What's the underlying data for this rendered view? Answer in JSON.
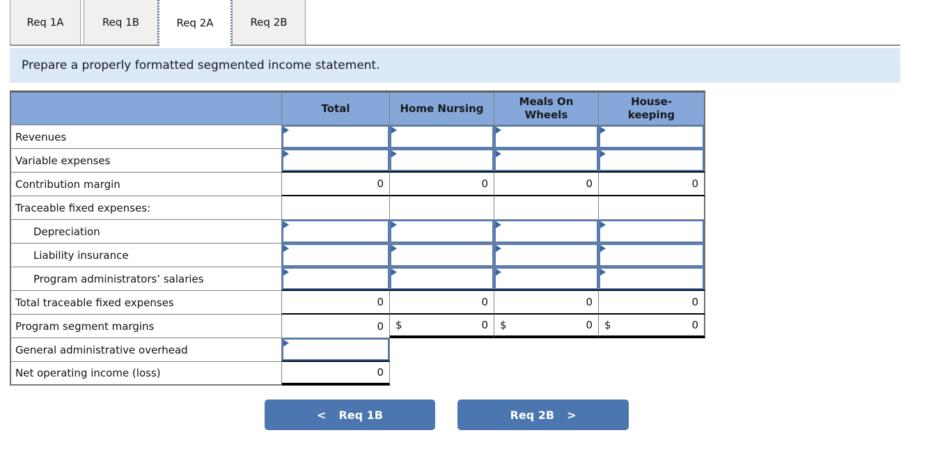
{
  "tabs": {
    "items": [
      {
        "label": "Req 1A",
        "active": false
      },
      {
        "label": "Req 1B",
        "active": false
      },
      {
        "label": "Req 2A",
        "active": true
      },
      {
        "label": "Req 2B",
        "active": false
      }
    ]
  },
  "instruction": "Prepare a properly formatted segmented income statement.",
  "table": {
    "headers": {
      "label": "",
      "total": "Total",
      "home_nursing": "Home Nursing",
      "meals_on_wheels": "Meals On\nWheels",
      "housekeeping": "House-\nkeeping"
    },
    "rows": [
      {
        "label": "Revenues",
        "type": "input"
      },
      {
        "label": "Variable expenses",
        "type": "input"
      },
      {
        "label": "Contribution margin",
        "type": "subtotal",
        "values": [
          "0",
          "0",
          "0",
          "0"
        ]
      },
      {
        "label": "Traceable fixed expenses:",
        "type": "section"
      },
      {
        "label": "Depreciation",
        "type": "input",
        "indent": true
      },
      {
        "label": "Liability insurance",
        "type": "input",
        "indent": true
      },
      {
        "label": "Program administrators’ salaries",
        "type": "input",
        "indent": true
      },
      {
        "label": "Total traceable fixed expenses",
        "type": "subtotal",
        "values": [
          "0",
          "0",
          "0",
          "0"
        ]
      },
      {
        "label": "Program segment margins",
        "type": "segment_margin",
        "total": "0",
        "currency": "$",
        "values": [
          "0",
          "0",
          "0"
        ]
      },
      {
        "label": "General administrative overhead",
        "type": "input_total_only"
      },
      {
        "label": "Net operating income (loss)",
        "type": "grand_total",
        "total": "0"
      }
    ]
  },
  "nav": {
    "prev_label": "Req 1B",
    "next_label": "Req 2B",
    "prev_icon": "<",
    "next_icon": ">"
  },
  "colors": {
    "header_fill": "#86a7d9",
    "input_border": "#4f7cb8",
    "flag": "#3a67a3",
    "banner_fill": "#dce9f8",
    "button_fill": "#4b76af",
    "grid_line": "#7f7f7f",
    "rule_black": "#000000"
  }
}
